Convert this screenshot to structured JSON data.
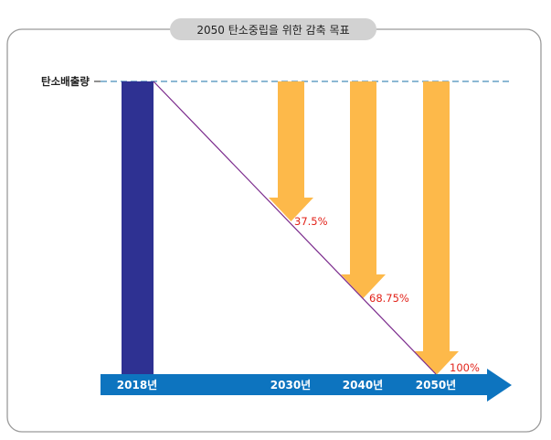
{
  "title": "2050 탄소중립을 위한 감축 목표",
  "ylabel": "탄소배출량",
  "years": [
    "2018년",
    "2030년",
    "2040년",
    "2050년"
  ],
  "reductions": [
    "37.5%",
    "68.75%",
    "100%"
  ],
  "chart_data": {
    "type": "bar",
    "categories": [
      "2018년",
      "2030년",
      "2040년",
      "2050년"
    ],
    "values": [
      0,
      37.5,
      68.75,
      100
    ],
    "annotations": [
      "37.5%",
      "68.75%",
      "100%"
    ],
    "ylabel": "탄소배출량"
  },
  "colors": {
    "frame": "#9a9a9a",
    "title_bg": "#d2d2d2",
    "bar_2018": "#2e3192",
    "arrow_down": "#fdb94a",
    "timeline": "#0d74bf",
    "trend_line": "#7a2a8c",
    "dashed_line": "#1a72a8",
    "percent_text": "#e2231a",
    "year_text": "#ffffff"
  }
}
